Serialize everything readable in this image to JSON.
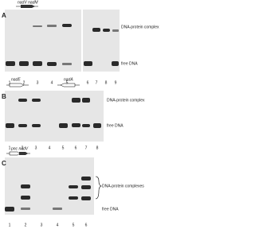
{
  "panels": [
    {
      "label": "A",
      "genes": [
        "nadV nadM"
      ],
      "annotations": [
        "DNA-protein complex",
        "free DNA"
      ],
      "lanes": [
        "1",
        "2",
        "3",
        "4",
        "5",
        "6",
        "7",
        "8",
        "9"
      ]
    },
    {
      "label": "B",
      "genes": [
        "nadE",
        "nadA"
      ],
      "annotations": [
        "DNA-protein complex",
        "free DNA"
      ],
      "lanes": [
        "1",
        "2",
        "3",
        "4",
        "5",
        "6",
        "7",
        "8"
      ]
    },
    {
      "label": "C",
      "genes": [
        "pnc nadV"
      ],
      "annotations": [
        "DNA-protein complexes",
        "free DNA"
      ],
      "lanes": [
        "1",
        "2",
        "3",
        "4",
        "5",
        "6"
      ]
    }
  ]
}
